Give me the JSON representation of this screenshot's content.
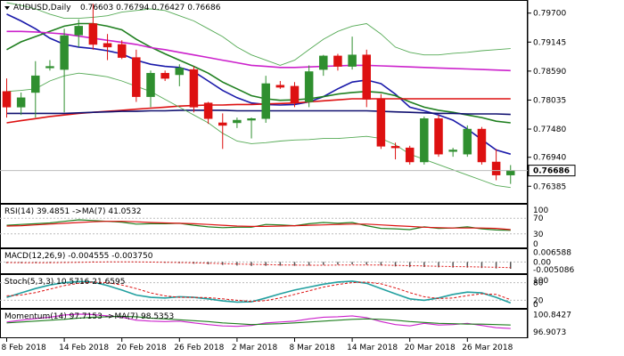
{
  "colors": {
    "bull": "#2f8f2f",
    "bear": "#dd1111",
    "ma_fast": "#1a1aaa",
    "ma_green": "#1f7f1f",
    "ma_magenta": "#cc22cc",
    "ma_red": "#dd1111",
    "ma_navy": "#101070",
    "bb": "#55aa55",
    "frame": "#000000"
  },
  "chart_data": [
    {
      "type": "candlestick",
      "title": "AUDUSD,Daily",
      "ohlc_label": "0.76603 0.76794 0.76427 0.76686",
      "ylim": [
        0.761,
        0.799
      ],
      "yticks": [
        0.797,
        0.79145,
        0.7859,
        0.78035,
        0.7748,
        0.7694,
        0.76385
      ],
      "ytick_labels": [
        "0.79700",
        "0.79145",
        "0.78590",
        "0.78035",
        "0.77480",
        "0.76940",
        "0.76385"
      ],
      "current_price": 0.76686,
      "current_price_label": "0.76686",
      "x_labels": [
        "8 Feb 2018",
        "14 Feb 2018",
        "20 Feb 2018",
        "26 Feb 2018",
        "2 Mar 2018",
        "8 Mar 2018",
        "14 Mar 2018",
        "20 Mar 2018",
        "26 Mar 2018"
      ],
      "x_label_index": [
        0,
        4,
        8,
        12,
        16,
        20,
        24,
        28,
        32
      ],
      "candles": [
        {
          "o": 0.782,
          "h": 0.7845,
          "l": 0.777,
          "c": 0.779
        },
        {
          "o": 0.779,
          "h": 0.7818,
          "l": 0.7775,
          "c": 0.7808
        },
        {
          "o": 0.7818,
          "h": 0.7878,
          "l": 0.777,
          "c": 0.785
        },
        {
          "o": 0.7865,
          "h": 0.788,
          "l": 0.786,
          "c": 0.7868
        },
        {
          "o": 0.7862,
          "h": 0.794,
          "l": 0.778,
          "c": 0.7927
        },
        {
          "o": 0.7928,
          "h": 0.7958,
          "l": 0.7905,
          "c": 0.7945
        },
        {
          "o": 0.795,
          "h": 0.7988,
          "l": 0.79,
          "c": 0.791
        },
        {
          "o": 0.7912,
          "h": 0.793,
          "l": 0.788,
          "c": 0.7905
        },
        {
          "o": 0.791,
          "h": 0.7918,
          "l": 0.7882,
          "c": 0.7885
        },
        {
          "o": 0.7885,
          "h": 0.79,
          "l": 0.78,
          "c": 0.781
        },
        {
          "o": 0.781,
          "h": 0.786,
          "l": 0.779,
          "c": 0.7855
        },
        {
          "o": 0.7855,
          "h": 0.786,
          "l": 0.784,
          "c": 0.7845
        },
        {
          "o": 0.7852,
          "h": 0.7872,
          "l": 0.783,
          "c": 0.7865
        },
        {
          "o": 0.7862,
          "h": 0.7868,
          "l": 0.778,
          "c": 0.779
        },
        {
          "o": 0.7798,
          "h": 0.78,
          "l": 0.7758,
          "c": 0.7768
        },
        {
          "o": 0.776,
          "h": 0.7778,
          "l": 0.771,
          "c": 0.7755
        },
        {
          "o": 0.776,
          "h": 0.777,
          "l": 0.775,
          "c": 0.7765
        },
        {
          "o": 0.7765,
          "h": 0.777,
          "l": 0.773,
          "c": 0.7768
        },
        {
          "o": 0.7768,
          "h": 0.785,
          "l": 0.776,
          "c": 0.7835
        },
        {
          "o": 0.7832,
          "h": 0.784,
          "l": 0.7825,
          "c": 0.7828
        },
        {
          "o": 0.783,
          "h": 0.7838,
          "l": 0.779,
          "c": 0.7798
        },
        {
          "o": 0.78,
          "h": 0.787,
          "l": 0.779,
          "c": 0.7858
        },
        {
          "o": 0.7862,
          "h": 0.789,
          "l": 0.785,
          "c": 0.7888
        },
        {
          "o": 0.7888,
          "h": 0.7892,
          "l": 0.786,
          "c": 0.7868
        },
        {
          "o": 0.7868,
          "h": 0.7925,
          "l": 0.7862,
          "c": 0.789
        },
        {
          "o": 0.789,
          "h": 0.79,
          "l": 0.779,
          "c": 0.7805
        },
        {
          "o": 0.7805,
          "h": 0.7815,
          "l": 0.771,
          "c": 0.7715
        },
        {
          "o": 0.7715,
          "h": 0.7722,
          "l": 0.769,
          "c": 0.7712
        },
        {
          "o": 0.7712,
          "h": 0.7716,
          "l": 0.768,
          "c": 0.7685
        },
        {
          "o": 0.7685,
          "h": 0.7772,
          "l": 0.768,
          "c": 0.7768
        },
        {
          "o": 0.7768,
          "h": 0.7775,
          "l": 0.7695,
          "c": 0.77
        },
        {
          "o": 0.7705,
          "h": 0.7712,
          "l": 0.7695,
          "c": 0.7708
        },
        {
          "o": 0.77,
          "h": 0.7755,
          "l": 0.7695,
          "c": 0.7748
        },
        {
          "o": 0.7748,
          "h": 0.7752,
          "l": 0.768,
          "c": 0.7685
        },
        {
          "o": 0.7685,
          "h": 0.771,
          "l": 0.765,
          "c": 0.766
        },
        {
          "o": 0.766,
          "h": 0.7679,
          "l": 0.7643,
          "c": 0.7669
        }
      ],
      "lines": [
        {
          "key": "ma_fast",
          "values": [
            0.7968,
            0.7955,
            0.794,
            0.7922,
            0.791,
            0.7905,
            0.7902,
            0.7898,
            0.7892,
            0.788,
            0.7872,
            0.7868,
            0.7866,
            0.7858,
            0.784,
            0.7822,
            0.7808,
            0.7798,
            0.7795,
            0.7794,
            0.7795,
            0.78,
            0.781,
            0.7825,
            0.7838,
            0.7842,
            0.7835,
            0.7815,
            0.779,
            0.7783,
            0.7775,
            0.7765,
            0.7748,
            0.7728,
            0.7708,
            0.77
          ]
        },
        {
          "key": "ma_green",
          "values": [
            0.79,
            0.7915,
            0.7925,
            0.7935,
            0.7945,
            0.795,
            0.795,
            0.7945,
            0.7938,
            0.792,
            0.7905,
            0.7892,
            0.788,
            0.7868,
            0.7855,
            0.7838,
            0.7825,
            0.7812,
            0.7806,
            0.7803,
            0.7804,
            0.7806,
            0.781,
            0.7815,
            0.7818,
            0.782,
            0.7818,
            0.7812,
            0.78,
            0.779,
            0.7784,
            0.778,
            0.7775,
            0.777,
            0.7763,
            0.776
          ]
        },
        {
          "key": "ma_magenta",
          "values": [
            0.7935,
            0.7935,
            0.7934,
            0.7932,
            0.793,
            0.7926,
            0.7922,
            0.7918,
            0.7914,
            0.791,
            0.7904,
            0.79,
            0.7895,
            0.789,
            0.7885,
            0.788,
            0.7875,
            0.787,
            0.7868,
            0.7866,
            0.7866,
            0.7867,
            0.7868,
            0.7869,
            0.787,
            0.787,
            0.7869,
            0.7868,
            0.7867,
            0.7866,
            0.7865,
            0.7864,
            0.7863,
            0.7862,
            0.7861,
            0.786
          ]
        },
        {
          "key": "ma_red",
          "values": [
            0.776,
            0.7764,
            0.7768,
            0.7772,
            0.7775,
            0.7778,
            0.778,
            0.7782,
            0.7784,
            0.7786,
            0.7788,
            0.779,
            0.7792,
            0.7793,
            0.7794,
            0.7794,
            0.7795,
            0.7795,
            0.7796,
            0.7797,
            0.7798,
            0.78,
            0.7802,
            0.7804,
            0.7806,
            0.7806,
            0.7806,
            0.7806,
            0.7806,
            0.7806,
            0.7806,
            0.7806,
            0.7806,
            0.7806,
            0.7806,
            0.7806
          ]
        },
        {
          "key": "ma_navy",
          "values": [
            0.7778,
            0.7778,
            0.7778,
            0.7778,
            0.7778,
            0.7779,
            0.778,
            0.7781,
            0.7782,
            0.7782,
            0.7783,
            0.7783,
            0.7784,
            0.7784,
            0.7784,
            0.7784,
            0.7783,
            0.7783,
            0.7783,
            0.7783,
            0.7783,
            0.7783,
            0.7783,
            0.7783,
            0.7783,
            0.7783,
            0.7782,
            0.7781,
            0.778,
            0.7779,
            0.7778,
            0.7778,
            0.7777,
            0.7777,
            0.7777,
            0.7776
          ]
        },
        {
          "key": "bb",
          "values": [
            0.799,
            0.7985,
            0.7978,
            0.7968,
            0.796,
            0.796,
            0.7962,
            0.7965,
            0.7972,
            0.7975,
            0.7978,
            0.7975,
            0.7965,
            0.7955,
            0.794,
            0.7925,
            0.7905,
            0.789,
            0.788,
            0.787,
            0.788,
            0.79,
            0.792,
            0.7935,
            0.7945,
            0.795,
            0.793,
            0.7905,
            0.7895,
            0.789,
            0.789,
            0.7893,
            0.7895,
            0.7898,
            0.79,
            0.7902
          ]
        },
        {
          "key": "bb",
          "values": [
            0.782,
            0.7822,
            0.7825,
            0.784,
            0.785,
            0.7855,
            0.7852,
            0.7848,
            0.784,
            0.783,
            0.782,
            0.7805,
            0.779,
            0.7775,
            0.776,
            0.774,
            0.7725,
            0.772,
            0.7722,
            0.7725,
            0.7727,
            0.7728,
            0.773,
            0.773,
            0.7732,
            0.7734,
            0.773,
            0.7718,
            0.77,
            0.769,
            0.768,
            0.767,
            0.766,
            0.765,
            0.764,
            0.7636
          ]
        }
      ]
    },
    {
      "type": "line",
      "title": "RSI(14) 39.4851 ->MA(7) 41.0532",
      "ylim": [
        0,
        100
      ],
      "yticks": [
        70,
        30
      ],
      "ytick_labels": [
        "70",
        "30"
      ],
      "right_top_label": "100",
      "right_bottom_label": "0",
      "series": [
        {
          "color": "#1f7f1f",
          "values": [
            52,
            54,
            56,
            58,
            62,
            66,
            64,
            62,
            60,
            55,
            56,
            56,
            57,
            52,
            48,
            46,
            47,
            47,
            54,
            53,
            51,
            56,
            59,
            57,
            59,
            51,
            44,
            43,
            41,
            48,
            44,
            45,
            48,
            43,
            40,
            39
          ]
        },
        {
          "color": "#dd1111",
          "values": [
            50,
            51,
            53,
            55,
            57,
            59,
            61,
            62,
            62,
            61,
            59,
            58,
            57,
            56,
            54,
            52,
            50,
            49,
            49,
            50,
            51,
            52,
            53,
            54,
            55,
            55,
            53,
            51,
            49,
            47,
            46,
            45,
            45,
            45,
            44,
            41
          ]
        }
      ]
    },
    {
      "type": "bar",
      "title": "MACD(12,26,9) -0.004555 -0.003750",
      "ylim": [
        -0.0058,
        0.0068
      ],
      "yticks": [
        0.006588,
        0.0,
        -0.005086
      ],
      "ytick_labels": [
        "0.006588",
        "0.00",
        "-0.005086"
      ],
      "values": [
        -0.0008,
        -0.0007,
        -0.0006,
        -0.0005,
        -0.0002,
        0.0002,
        0.0004,
        0.0003,
        0.0002,
        -0.0002,
        -0.0004,
        -0.0006,
        -0.0008,
        -0.0012,
        -0.0016,
        -0.002,
        -0.0024,
        -0.0027,
        -0.0026,
        -0.0025,
        -0.0026,
        -0.0024,
        -0.002,
        -0.0018,
        -0.0016,
        -0.0018,
        -0.0024,
        -0.003,
        -0.0035,
        -0.0034,
        -0.0036,
        -0.0038,
        -0.0038,
        -0.0041,
        -0.0044,
        -0.0046
      ],
      "signal": [
        -0.0004,
        -0.0005,
        -0.0005,
        -0.0005,
        -0.0004,
        -0.0003,
        -0.0001,
        0.0,
        0.0001,
        0.0,
        -0.0001,
        -0.0002,
        -0.0004,
        -0.0006,
        -0.0008,
        -0.0011,
        -0.0014,
        -0.0016,
        -0.0018,
        -0.002,
        -0.0021,
        -0.0022,
        -0.0022,
        -0.0021,
        -0.002,
        -0.002,
        -0.0021,
        -0.0023,
        -0.0025,
        -0.0027,
        -0.0029,
        -0.0031,
        -0.0032,
        -0.0034,
        -0.0036,
        -0.0038
      ]
    },
    {
      "type": "line",
      "title": "Stoch(5,3,3) 10.5716 21.6595",
      "ylim": [
        0,
        100
      ],
      "yticks": [
        80,
        20
      ],
      "ytick_labels": [
        "80",
        "20"
      ],
      "right_top_label": "100",
      "right_bottom_label": "0",
      "series": [
        {
          "color": "#22a0a0",
          "values": [
            30,
            45,
            60,
            72,
            80,
            84,
            82,
            70,
            55,
            38,
            30,
            28,
            32,
            30,
            25,
            18,
            14,
            15,
            28,
            42,
            55,
            65,
            75,
            82,
            85,
            78,
            60,
            42,
            25,
            20,
            28,
            40,
            48,
            45,
            30,
            11
          ]
        },
        {
          "color": "#dd1111",
          "values": [
            35,
            38,
            46,
            58,
            70,
            78,
            82,
            80,
            72,
            60,
            45,
            35,
            30,
            30,
            29,
            25,
            20,
            16,
            19,
            28,
            40,
            52,
            65,
            74,
            80,
            82,
            76,
            62,
            46,
            32,
            26,
            28,
            36,
            42,
            40,
            22
          ]
        }
      ]
    },
    {
      "type": "line",
      "title": "Momentum(14) 97.7153 ->MA(7) 98.5353",
      "ylim": [
        96.1,
        101.6
      ],
      "yticks": [
        100.8427,
        96.9073
      ],
      "ytick_labels": [
        "100.8427",
        "96.9073"
      ],
      "series": [
        {
          "color": "#cc22cc",
          "values": [
            99.2,
            99.6,
            100.0,
            100.3,
            100.8,
            101.0,
            100.9,
            100.6,
            100.3,
            99.6,
            99.4,
            99.3,
            99.4,
            99.0,
            98.6,
            98.3,
            98.2,
            98.4,
            99.0,
            99.2,
            99.4,
            99.9,
            100.3,
            100.4,
            100.6,
            100.2,
            99.3,
            98.6,
            98.3,
            98.9,
            98.5,
            98.6,
            98.9,
            98.4,
            97.9,
            97.7
          ]
        },
        {
          "color": "#1f7f1f",
          "values": [
            99.0,
            99.2,
            99.4,
            99.6,
            99.8,
            100.1,
            100.3,
            100.4,
            100.5,
            100.4,
            100.1,
            99.9,
            99.7,
            99.5,
            99.3,
            99.0,
            98.8,
            98.6,
            98.7,
            98.8,
            99.0,
            99.2,
            99.4,
            99.6,
            99.8,
            99.9,
            99.8,
            99.6,
            99.3,
            99.1,
            98.9,
            98.8,
            98.7,
            98.7,
            98.6,
            98.5
          ]
        }
      ]
    }
  ]
}
